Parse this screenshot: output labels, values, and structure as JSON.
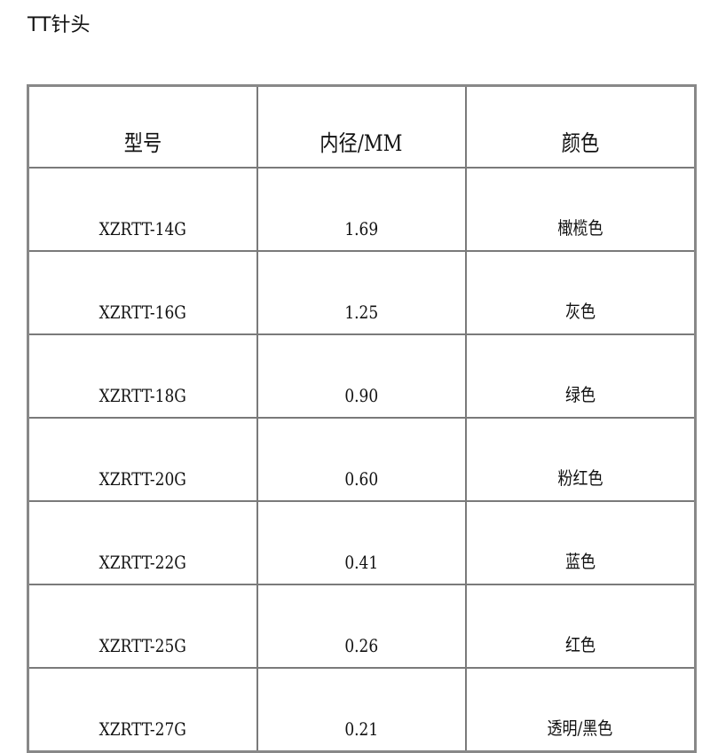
{
  "title": "TT针头",
  "table": {
    "headers": [
      "型号",
      "内径/MM",
      "颜色"
    ],
    "rows": [
      [
        "XZRTT-14G",
        "1.69",
        "橄榄色"
      ],
      [
        "XZRTT-16G",
        "1.25",
        "灰色"
      ],
      [
        "XZRTT-18G",
        "0.90",
        "绿色"
      ],
      [
        "XZRTT-20G",
        "0.60",
        "粉红色"
      ],
      [
        "XZRTT-22G",
        "0.41",
        "蓝色"
      ],
      [
        "XZRTT-25G",
        "0.26",
        "红色"
      ],
      [
        "XZRTT-27G",
        "0.21",
        "透明/黑色"
      ]
    ]
  }
}
